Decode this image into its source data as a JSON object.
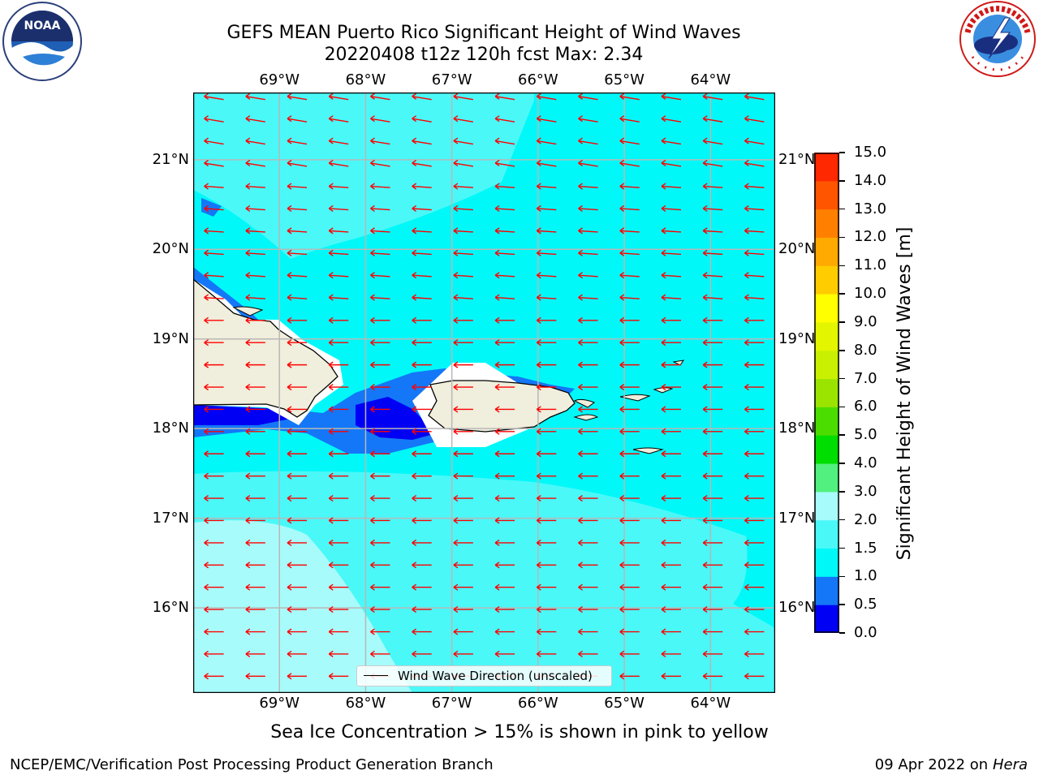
{
  "header": {
    "title_line1": "GEFS MEAN Puerto Rico Significant Height of Wind Waves",
    "title_line2": "20220408 t12z 120h fcst   Max: 2.34"
  },
  "logos": {
    "left": {
      "name": "noaa-logo",
      "text": "NOAA",
      "ring_text": "NATIONAL OCEANIC AND ATMOSPHERIC ADMINISTRATION · U.S. DEPARTMENT OF COMMERCE"
    },
    "right": {
      "name": "nws-logo",
      "ring_text": "NATIONAL WEATHER SERVICE"
    }
  },
  "map": {
    "lon_ticks": [
      "69°W",
      "68°W",
      "67°W",
      "66°W",
      "65°W",
      "64°W"
    ],
    "lat_ticks": [
      "21°N",
      "20°N",
      "19°N",
      "18°N",
      "17°N",
      "16°N"
    ],
    "lon_values": [
      -69,
      -68,
      -67,
      -66,
      -65,
      -64
    ],
    "lat_values": [
      21,
      20,
      19,
      18,
      17,
      16
    ],
    "extent": {
      "lon_min": -70,
      "lon_max": -63.25,
      "lat_min": 15.05,
      "lat_max": 21.75
    },
    "wind_direction": "east-northeast",
    "legend_label": "Wind Wave Direction (unscaled)",
    "colors": {
      "ocean": "#00f8f8",
      "land": "#f0eedc",
      "arrow": "#ff0000",
      "grid": "#b8b8b8"
    }
  },
  "colorbar": {
    "levels": [
      "0.0",
      "0.5",
      "1.0",
      "1.5",
      "2.0",
      "3.0",
      "4.0",
      "5.0",
      "6.0",
      "7.0",
      "8.0",
      "9.0",
      "10.0",
      "11.0",
      "12.0",
      "13.0",
      "14.0",
      "15.0"
    ],
    "colors": [
      "#0000f5",
      "#1477f7",
      "#00f8f8",
      "#4af8f8",
      "#a8fbfb",
      "#52f07e",
      "#00dd00",
      "#4cdd00",
      "#9be400",
      "#c9f000",
      "#e4f500",
      "#ffff00",
      "#ffcc00",
      "#ffaa00",
      "#ff8000",
      "#ff5500",
      "#ff2800"
    ],
    "label": "Significant Height of Wind Waves [m]"
  },
  "notes": {
    "sea_ice": "Sea Ice Concentration > 15% is shown in pink to yellow"
  },
  "footer": {
    "left": "NCEP/EMC/Verification Post Processing Product Generation Branch",
    "date": "09 Apr 2022 on ",
    "machine": "Hera"
  }
}
